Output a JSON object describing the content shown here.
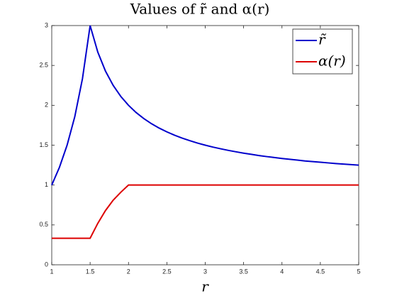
{
  "chart_data": {
    "type": "line",
    "title": "Values of r̃ and α(r)",
    "x_label": "r",
    "x": [
      1,
      1.1,
      1.2,
      1.3,
      1.4,
      1.5,
      1.6,
      1.7,
      1.8,
      1.9,
      2,
      2.1,
      2.2,
      2.3,
      2.4,
      2.5,
      2.6,
      2.7,
      2.8,
      2.9,
      3,
      3.1,
      3.2,
      3.3,
      3.4,
      3.5,
      3.6,
      3.7,
      3.8,
      3.9,
      4,
      4.1,
      4.2,
      4.3,
      4.4,
      4.5,
      4.6,
      4.7,
      4.8,
      4.9,
      5
    ],
    "series": [
      {
        "name": "r̃",
        "color": "#0000cc",
        "values": [
          1,
          1.222,
          1.5,
          1.857,
          2.333,
          3,
          2.667,
          2.429,
          2.25,
          2.111,
          2,
          1.909,
          1.833,
          1.769,
          1.714,
          1.667,
          1.625,
          1.588,
          1.556,
          1.526,
          1.5,
          1.476,
          1.455,
          1.435,
          1.417,
          1.4,
          1.385,
          1.37,
          1.357,
          1.345,
          1.333,
          1.323,
          1.313,
          1.302,
          1.294,
          1.286,
          1.278,
          1.27,
          1.263,
          1.256,
          1.25
        ]
      },
      {
        "name": "α(r)",
        "color": "#dd0000",
        "values": [
          0.333,
          0.333,
          0.333,
          0.333,
          0.333,
          0.333,
          0.52,
          0.68,
          0.81,
          0.91,
          1,
          1,
          1,
          1,
          1,
          1,
          1,
          1,
          1,
          1,
          1,
          1,
          1,
          1,
          1,
          1,
          1,
          1,
          1,
          1,
          1,
          1,
          1,
          1,
          1,
          1,
          1,
          1,
          1,
          1,
          1
        ]
      }
    ],
    "xlim": [
      1,
      5
    ],
    "xticks": [
      1,
      1.5,
      2,
      2.5,
      3,
      3.5,
      4,
      4.5,
      5
    ],
    "ylim": [
      0,
      3
    ],
    "yticks": [
      0,
      0.5,
      1,
      1.5,
      2,
      2.5,
      3
    ],
    "legend": "top-right"
  }
}
